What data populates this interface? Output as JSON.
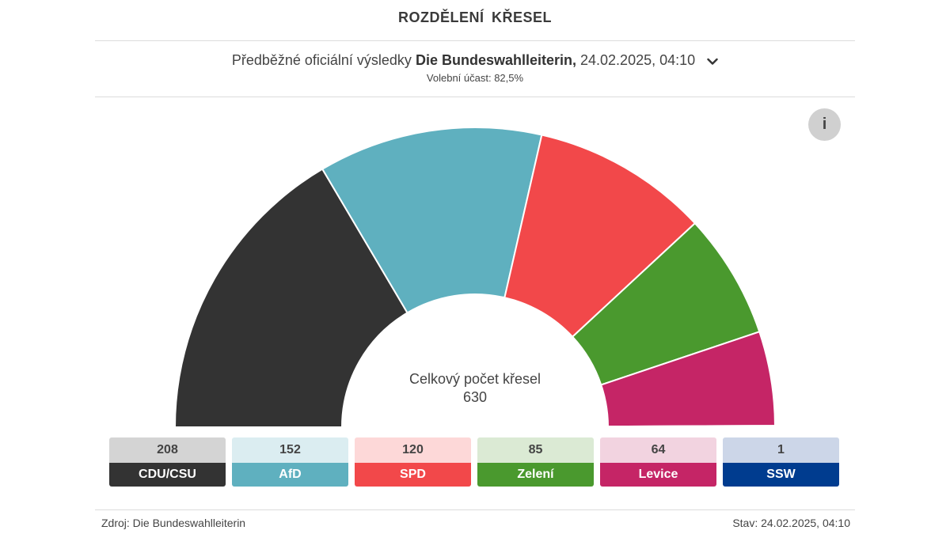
{
  "header": {
    "title": "ROZDĚLENÍ KŘESEL",
    "subtitle_prefix": "Předběžné oficiální výsledky",
    "subtitle_source": "Die Bundeswahlleiterin,",
    "subtitle_datetime": "24.02.2025, 04:10",
    "turnout": "Volební účast: 82,5%"
  },
  "info_button": {
    "label": "i",
    "icon": "info-icon"
  },
  "center": {
    "label": "Celkový počet křesel",
    "total": "630"
  },
  "chart_data": {
    "type": "hemicycle",
    "total_seats": 630,
    "categories": [
      "CDU/CSU",
      "AfD",
      "SPD",
      "Zelení",
      "Levice",
      "SSW"
    ],
    "values": [
      208,
      152,
      120,
      85,
      64,
      1
    ],
    "colors": [
      "#333333",
      "#5fb0bf",
      "#f2484a",
      "#4a992e",
      "#c52566",
      "#003c8f"
    ],
    "light_colors": [
      "#d4d4d4",
      "#dbedf1",
      "#fdd8d8",
      "#dbead4",
      "#f2d3e0",
      "#ccd6e8"
    ]
  },
  "footer": {
    "source": "Zdroj: Die Bundeswahlleiterin",
    "status": "Stav: 24.02.2025, 04:10"
  }
}
